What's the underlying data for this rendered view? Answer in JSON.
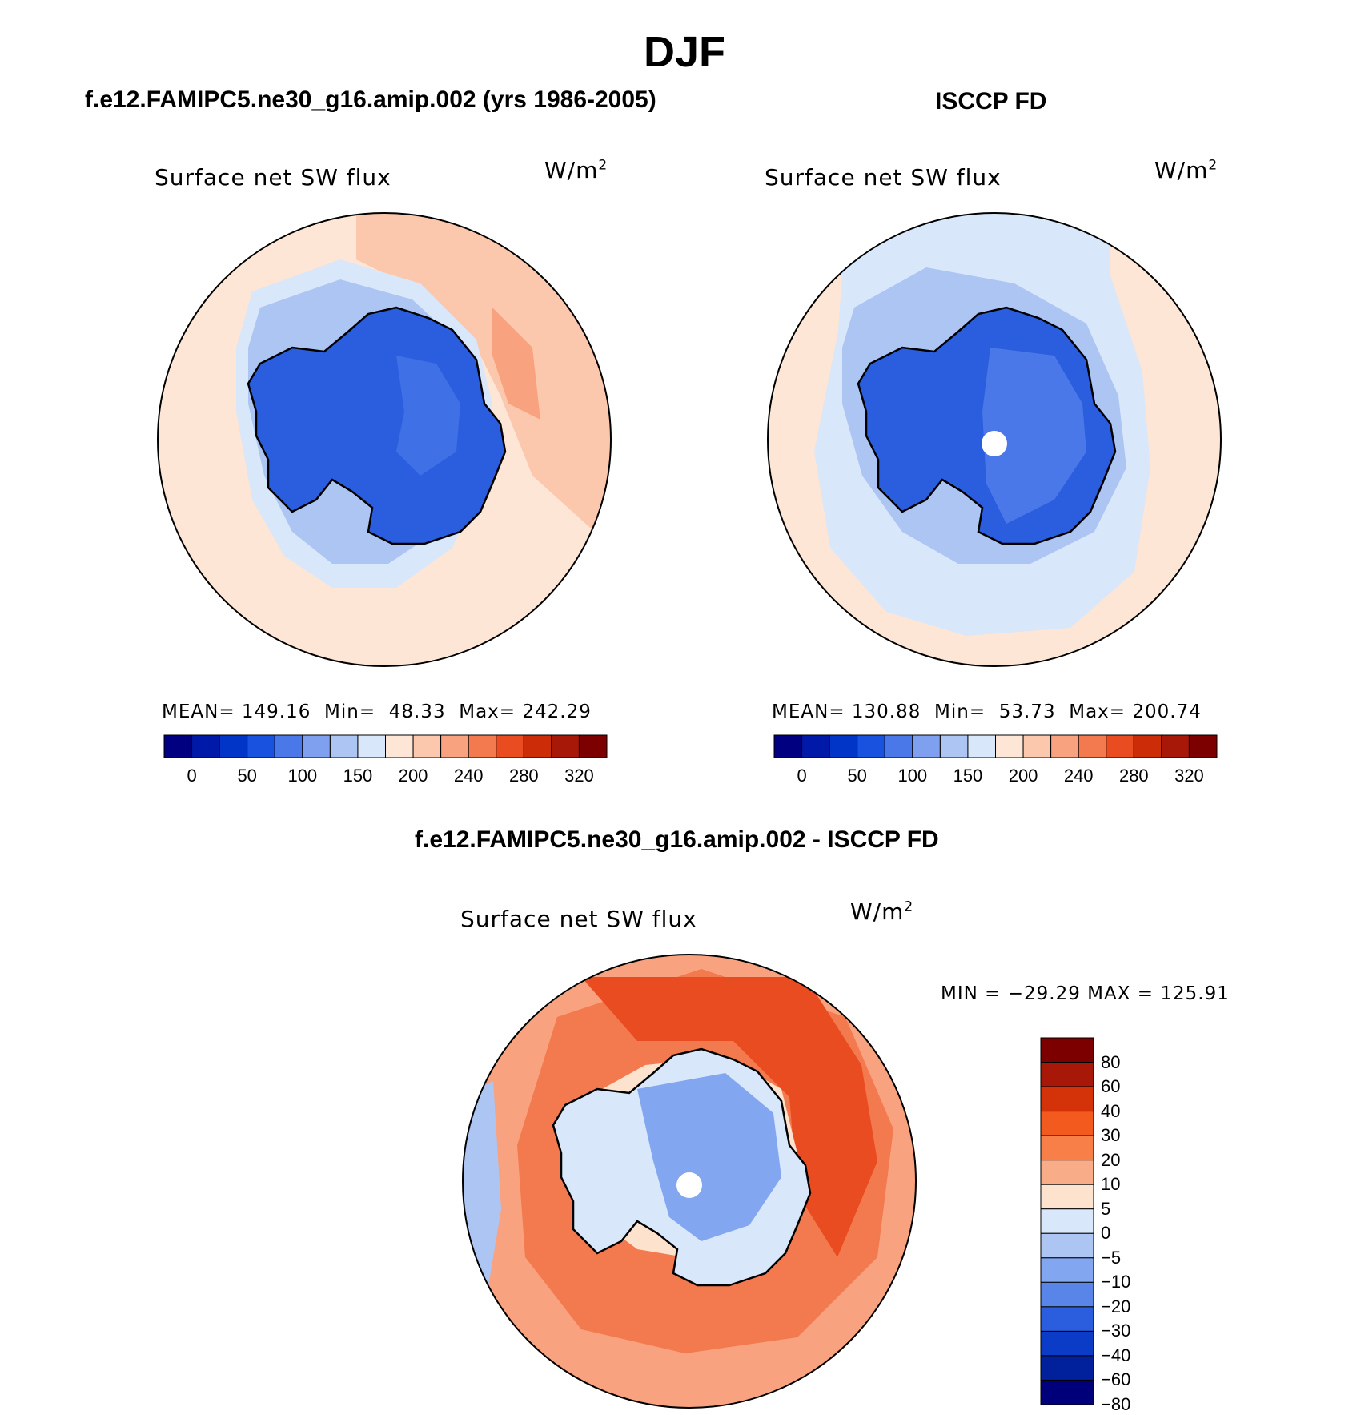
{
  "title": "DJF",
  "panels": [
    {
      "id": "model",
      "title": "f.e12.FAMIPC5.ne30_g16.amip.002 (yrs 1986-2005)",
      "variable": "Surface net SW flux",
      "units": "W/m",
      "units_sup": "2",
      "stats": {
        "mean_label": "MEAN=",
        "mean": "149.16",
        "min_label": "Min=",
        "min": "48.33",
        "max_label": "Max=",
        "max": "242.29"
      }
    },
    {
      "id": "obs",
      "title": "ISCCP FD",
      "variable": "Surface net SW flux",
      "units": "W/m",
      "units_sup": "2",
      "stats": {
        "mean_label": "MEAN=",
        "mean": "130.88",
        "min_label": "Min=",
        "min": "53.73",
        "max_label": "Max=",
        "max": "200.74"
      }
    },
    {
      "id": "diff",
      "title": "f.e12.FAMIPC5.ne30_g16.amip.002 - ISCCP FD",
      "variable": "Surface net SW flux",
      "units": "W/m",
      "units_sup": "2",
      "minmax": "MIN = −29.29 MAX = 125.91"
    }
  ],
  "abs_colorbar": {
    "colors": [
      "#000080",
      "#0019a8",
      "#0035c8",
      "#1a52e0",
      "#4a78e8",
      "#7fa0ee",
      "#adc5f3",
      "#d8e7fa",
      "#fde6d5",
      "#fbc8ad",
      "#f8a27f",
      "#f27a4e",
      "#e84c20",
      "#cc2c08",
      "#a81808",
      "#7c0000"
    ],
    "ticks": [
      "0",
      "50",
      "100",
      "150",
      "200",
      "240",
      "280",
      "320"
    ]
  },
  "diff_colorbar": {
    "colors": [
      "#7c0000",
      "#a81808",
      "#d43208",
      "#f25a1e",
      "#f88048",
      "#f9ac88",
      "#fde2cd",
      "#d8e7fa",
      "#adc5f3",
      "#82a6ef",
      "#5a85e8",
      "#2a5ede",
      "#0a3cc8",
      "#00209c",
      "#00007a"
    ],
    "labels": [
      "80",
      "60",
      "40",
      "30",
      "20",
      "10",
      "5",
      "0",
      "−5",
      "−10",
      "−20",
      "−30",
      "−40",
      "−60",
      "−80"
    ]
  },
  "map_colors": {
    "land_blue": "#2a5ede",
    "land_blue2": "#4a78e8",
    "ocean_light": "#fde6d5",
    "ocean_peach": "#fbc8ad",
    "ocean_salmon": "#f8a27f",
    "pale_blue": "#d8e7fa",
    "light_blue": "#adc5f3",
    "diff_red": "#e84c20",
    "diff_orange": "#f27a4e",
    "diff_dark_red": "#cc2c08",
    "diff_interior": "#82a6ef"
  }
}
